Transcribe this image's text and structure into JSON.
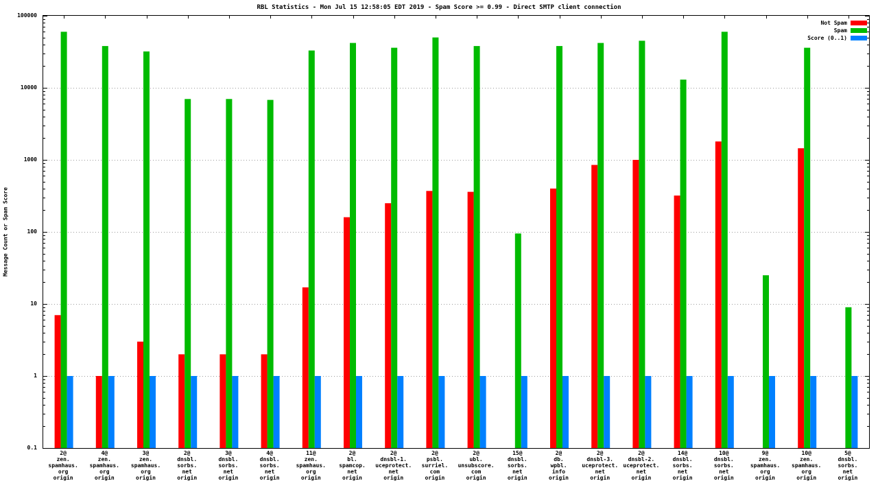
{
  "chart_data": {
    "type": "bar",
    "title": "RBL Statistics - Mon Jul 15 12:58:05 EDT 2019 - Spam Score >= 0.99 - Direct SMTP client connection",
    "ylabel": "Message Count or Spam Score",
    "xlabel": "",
    "y_scale": "log",
    "ylim": [
      0.1,
      100000
    ],
    "yticks": [
      100000,
      10000,
      1000,
      100,
      10,
      1,
      0.1
    ],
    "grid": true,
    "legend_position": "top-right",
    "categories": [
      [
        "2@",
        "zen.",
        "spamhaus.",
        "org",
        "origin"
      ],
      [
        "4@",
        "zen.",
        "spamhaus.",
        "org",
        "origin"
      ],
      [
        "3@",
        "zen.",
        "spamhaus.",
        "org",
        "origin"
      ],
      [
        "2@",
        "dnsbl.",
        "sorbs.",
        "net",
        "origin"
      ],
      [
        "3@",
        "dnsbl.",
        "sorbs.",
        "net",
        "origin"
      ],
      [
        "4@",
        "dnsbl.",
        "sorbs.",
        "net",
        "origin"
      ],
      [
        "11@",
        "zen.",
        "spamhaus.",
        "org",
        "origin"
      ],
      [
        "2@",
        "bl.",
        "spamcop.",
        "net",
        "origin"
      ],
      [
        "2@",
        "dnsbl-1.",
        "uceprotect.",
        "net",
        "origin"
      ],
      [
        "2@",
        "psbl.",
        "surriel.",
        "com",
        "origin"
      ],
      [
        "2@",
        "ubl.",
        "unsubscore.",
        "com",
        "origin"
      ],
      [
        "15@",
        "dnsbl.",
        "sorbs.",
        "net",
        "origin"
      ],
      [
        "2@",
        "db.",
        "wpbl.",
        "info",
        "origin"
      ],
      [
        "2@",
        "dnsbl-3.",
        "uceprotect.",
        "net",
        "origin"
      ],
      [
        "2@",
        "dnsbl-2.",
        "uceprotect.",
        "net",
        "origin"
      ],
      [
        "14@",
        "dnsbl.",
        "sorbs.",
        "net",
        "origin"
      ],
      [
        "10@",
        "dnsbl.",
        "sorbs.",
        "net",
        "origin"
      ],
      [
        "9@",
        "zen.",
        "spamhaus.",
        "org",
        "origin"
      ],
      [
        "10@",
        "zen.",
        "spamhaus.",
        "org",
        "origin"
      ],
      [
        "5@",
        "dnsbl.",
        "sorbs.",
        "net",
        "origin"
      ]
    ],
    "series": [
      {
        "name": "Not Spam",
        "color": "#ff0000",
        "values": [
          7,
          1,
          3,
          2,
          2,
          2,
          17,
          160,
          250,
          370,
          360,
          0,
          400,
          850,
          1000,
          320,
          1800,
          0,
          1450,
          0
        ]
      },
      {
        "name": "Spam",
        "color": "#00bb00",
        "values": [
          60000,
          38000,
          32000,
          7000,
          7000,
          6800,
          33000,
          42000,
          36000,
          50000,
          38000,
          95,
          38000,
          42000,
          45000,
          13000,
          60000,
          25,
          36000,
          9
        ]
      },
      {
        "name": "Score (0..1)",
        "color": "#0080ff",
        "values": [
          1,
          1,
          1,
          1,
          1,
          1,
          1,
          1,
          1,
          1,
          1,
          1,
          1,
          1,
          1,
          1,
          1,
          1,
          1,
          1
        ]
      }
    ],
    "grid_color": "#999999",
    "axis_color": "#000000"
  }
}
